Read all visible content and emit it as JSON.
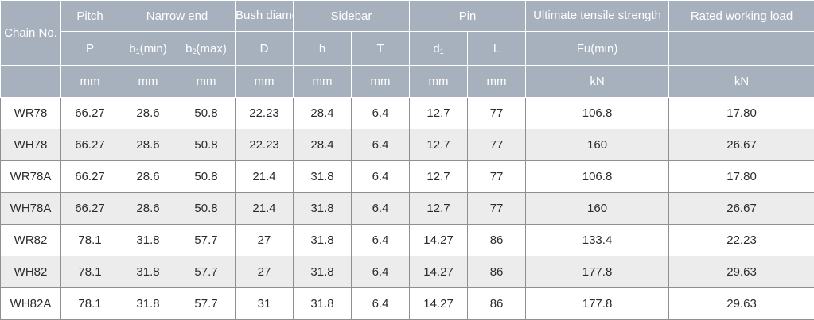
{
  "header": {
    "chain_no": "Chain No.",
    "pitch": "Pitch",
    "narrow_end": "Narrow end",
    "bush_diameter": "Bush diameter",
    "sidebar": "Sidebar",
    "pin": "Pin",
    "ultimate_tensile": "Ultimate tensile strength",
    "rated_load": "Rated working load",
    "sym_p": "P",
    "sym_b1": "b",
    "sym_b1_sub": "1",
    "sym_b1_suffix": "(min)",
    "sym_b2": "b",
    "sym_b2_sub": "2",
    "sym_b2_suffix": "(max)",
    "sym_d": "D",
    "sym_h": "h",
    "sym_t": "T",
    "sym_d1": "d",
    "sym_d1_sub": "1",
    "sym_l": "L",
    "sym_fu": "Fu(min)",
    "unit_mm": "mm",
    "unit_kn": "kN"
  },
  "rows": [
    [
      "WR78",
      "66.27",
      "28.6",
      "50.8",
      "22.23",
      "28.4",
      "6.4",
      "12.7",
      "77",
      "106.8",
      "17.80"
    ],
    [
      "WH78",
      "66.27",
      "28.6",
      "50.8",
      "22.23",
      "28.4",
      "6.4",
      "12.7",
      "77",
      "160",
      "26.67"
    ],
    [
      "WR78A",
      "66.27",
      "28.6",
      "50.8",
      "21.4",
      "31.8",
      "6.4",
      "12.7",
      "77",
      "106.8",
      "17.80"
    ],
    [
      "WH78A",
      "66.27",
      "28.6",
      "50.8",
      "21.4",
      "31.8",
      "6.4",
      "12.7",
      "77",
      "160",
      "26.67"
    ],
    [
      "WR82",
      "78.1",
      "31.8",
      "57.7",
      "27",
      "31.8",
      "6.4",
      "14.27",
      "86",
      "133.4",
      "22.23"
    ],
    [
      "WH82",
      "78.1",
      "31.8",
      "57.7",
      "27",
      "31.8",
      "6.4",
      "14.27",
      "86",
      "177.8",
      "29.63"
    ],
    [
      "WH82A",
      "78.1",
      "31.8",
      "57.7",
      "31",
      "31.8",
      "6.4",
      "14.27",
      "86",
      "177.8",
      "29.63"
    ]
  ]
}
